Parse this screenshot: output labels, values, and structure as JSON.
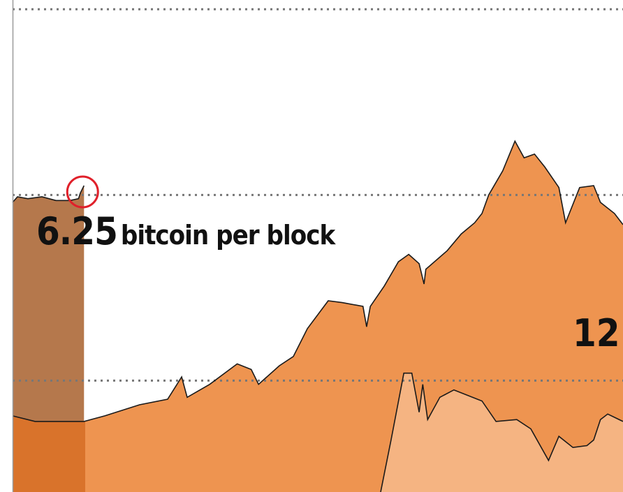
{
  "chart_data": {
    "type": "area",
    "title": "",
    "xlabel": "",
    "ylabel": "",
    "xlim": [
      0,
      100
    ],
    "ylim": [
      0,
      265
    ],
    "grid": {
      "horizontal": true,
      "style": "dotted",
      "values": [
        60,
        160,
        260
      ]
    },
    "colors": {
      "main": "#ee9450",
      "light": "#f5b482",
      "band": "#b5784c",
      "band_under": "#d9732b",
      "line": "#1a1a1a",
      "marker": "#e0202a",
      "grid": "#777777",
      "axis": "#999999"
    },
    "band": {
      "x_start": 0,
      "x_end": 11.9
    },
    "series": [
      {
        "key": "band_series",
        "x": [
          0,
          0.8,
          2.5,
          4.8,
          7.1,
          9.4,
          10.8,
          11.1,
          11.7
        ],
        "y": [
          156,
          159,
          158,
          159,
          157,
          157,
          158,
          161,
          165
        ]
      },
      {
        "key": "main_series",
        "x": [
          0,
          3.7,
          11.7,
          15.1,
          20.8,
          25.4,
          27.7,
          28.6,
          32.3,
          36.8,
          39.1,
          40.3,
          43.7,
          46,
          48.3,
          51.7,
          54,
          57.4,
          58,
          58.6,
          60.9,
          63.2,
          64.9,
          66.6,
          67.4,
          67.7,
          71.2,
          73.5,
          75.7,
          76.9,
          78,
          80.3,
          82.3,
          83.8,
          85.5,
          87.2,
          89.5,
          90.6,
          92.9,
          95.2,
          96.3,
          98.6,
          100
        ],
        "y": [
          41,
          38,
          38,
          41,
          47,
          50,
          62,
          51,
          58,
          69,
          66,
          58,
          68,
          73,
          88,
          103,
          102,
          100,
          89,
          100,
          111,
          124,
          128,
          123,
          112,
          120,
          130,
          139,
          145,
          150,
          160,
          173,
          189,
          180,
          182,
          175,
          164,
          145,
          164,
          165,
          156,
          150,
          144
        ]
      },
      {
        "key": "light_series",
        "x": [
          60.3,
          62,
          64.1,
          65.4,
          66.6,
          67.2,
          68,
          70,
          72.3,
          76.9,
          79.2,
          82.6,
          84.9,
          87.8,
          89.5,
          91.8,
          94.1,
          95.2,
          96.3,
          97.5,
          100
        ],
        "y": [
          0,
          28,
          64,
          64,
          43,
          58,
          39,
          51,
          55,
          49,
          38,
          39,
          34,
          17,
          30,
          24,
          25,
          28,
          39,
          42,
          38
        ]
      }
    ],
    "marker": {
      "shape": "circle",
      "x": 11.7,
      "y": 165
    },
    "annotations": [
      {
        "value": "6.25",
        "text": "bitcoin per block"
      },
      {
        "value": "12",
        "text": ""
      }
    ]
  }
}
